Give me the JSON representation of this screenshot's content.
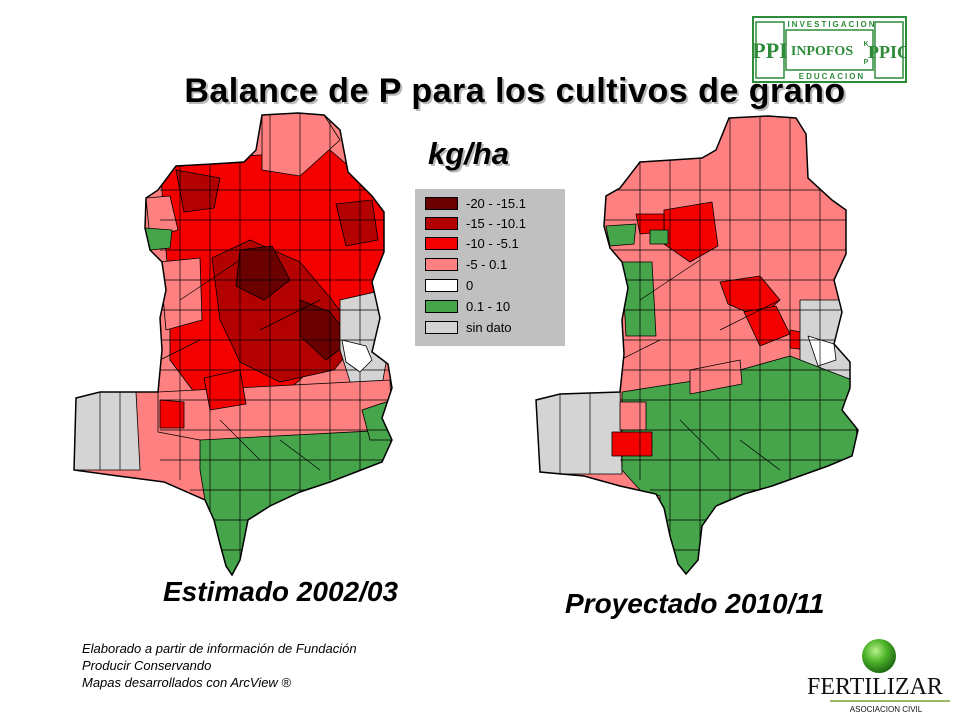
{
  "title": "Balance de P para los cultivos de grano",
  "unit": "kg/ha",
  "colors": {
    "c1": "#6b0000",
    "c2": "#b30000",
    "c3": "#f40000",
    "c4": "#ff8080",
    "c5": "#ffffff",
    "c6": "#46a44a",
    "c7": "#d4d4d4"
  },
  "legend": [
    {
      "label": "-20 - -15.1",
      "color": "#6b0000"
    },
    {
      "label": "-15 - -10.1",
      "color": "#b30000"
    },
    {
      "label": "-10 - -5.1",
      "color": "#f40000"
    },
    {
      "label": "-5 - 0.1",
      "color": "#ff8080"
    },
    {
      "label": "0",
      "color": "#ffffff"
    },
    {
      "label": "0.1 - 10",
      "color": "#46a44a"
    },
    {
      "label": "sin dato",
      "color": "#d4d4d4"
    }
  ],
  "maps": {
    "left": {
      "caption": "Estimado 2002/03"
    },
    "right": {
      "caption": "Proyectado 2010/11"
    }
  },
  "credits": [
    "Elaborado a partir de información de Fundación",
    "Producir Conservando",
    "Mapas desarrollados con ArcView ®"
  ],
  "logos": {
    "ppi": {
      "top": "INVESTIGACION",
      "center": "INPOFOS",
      "bottom": "EDUCACION",
      "left_mark": "PPI",
      "right_mark": "PPIC",
      "k": "K",
      "p": "P"
    },
    "fertilizar": {
      "name": "FERTILIZAR",
      "sub": "ASOCIACION CIVIL"
    }
  }
}
